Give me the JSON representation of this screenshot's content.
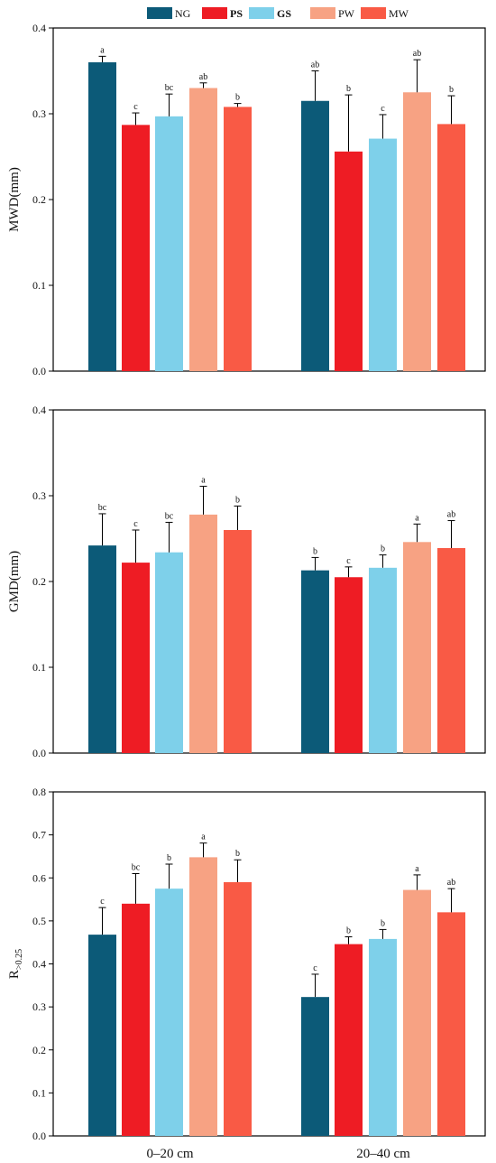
{
  "legend": {
    "items": [
      {
        "label": "NG",
        "color": "#0c5a78",
        "bold": false
      },
      {
        "label": "PS",
        "color": "#ee1c24",
        "bold": true
      },
      {
        "label": "GS",
        "color": "#7ed0ea",
        "bold": true
      },
      {
        "label": "PW",
        "color": "#f7a283",
        "bold": false
      },
      {
        "label": "MW",
        "color": "#f95a45",
        "bold": false
      }
    ]
  },
  "chart_data": [
    {
      "type": "bar",
      "title": "",
      "xlabel": "",
      "ylabel": "MWD(mm)",
      "ylim": [
        0,
        0.4
      ],
      "yticks": [
        "0.0",
        "0.1",
        "0.2",
        "0.3",
        "0.4"
      ],
      "categories": [
        "0–20 cm",
        "20–40 cm"
      ],
      "show_category_labels": false,
      "series": [
        {
          "name": "NG",
          "values": [
            0.36,
            0.315
          ],
          "errors": [
            0.007,
            0.035
          ],
          "letters": [
            "a",
            "ab"
          ]
        },
        {
          "name": "PS",
          "values": [
            0.287,
            0.256
          ],
          "errors": [
            0.014,
            0.066
          ],
          "letters": [
            "c",
            "b"
          ]
        },
        {
          "name": "GS",
          "values": [
            0.297,
            0.271
          ],
          "errors": [
            0.026,
            0.028
          ],
          "letters": [
            "bc",
            "c"
          ]
        },
        {
          "name": "PW",
          "values": [
            0.33,
            0.325
          ],
          "errors": [
            0.006,
            0.038
          ],
          "letters": [
            "ab",
            "ab"
          ]
        },
        {
          "name": "MW",
          "values": [
            0.308,
            0.288
          ],
          "errors": [
            0.004,
            0.033
          ],
          "letters": [
            "b",
            "b"
          ]
        }
      ]
    },
    {
      "type": "bar",
      "title": "",
      "xlabel": "",
      "ylabel": "GMD(mm)",
      "ylim": [
        0,
        0.4
      ],
      "yticks": [
        "0.0",
        "0.1",
        "0.2",
        "0.3",
        "0.4"
      ],
      "categories": [
        "0–20 cm",
        "20–40 cm"
      ],
      "show_category_labels": false,
      "series": [
        {
          "name": "NG",
          "values": [
            0.242,
            0.213
          ],
          "errors": [
            0.037,
            0.015
          ],
          "letters": [
            "bc",
            "b"
          ]
        },
        {
          "name": "PS",
          "values": [
            0.222,
            0.205
          ],
          "errors": [
            0.038,
            0.012
          ],
          "letters": [
            "c",
            "c"
          ]
        },
        {
          "name": "GS",
          "values": [
            0.234,
            0.216
          ],
          "errors": [
            0.035,
            0.015
          ],
          "letters": [
            "bc",
            "b"
          ]
        },
        {
          "name": "PW",
          "values": [
            0.278,
            0.246
          ],
          "errors": [
            0.033,
            0.021
          ],
          "letters": [
            "a",
            "a"
          ]
        },
        {
          "name": "MW",
          "values": [
            0.26,
            0.239
          ],
          "errors": [
            0.028,
            0.032
          ],
          "letters": [
            "b",
            "ab"
          ]
        }
      ]
    },
    {
      "type": "bar",
      "title": "",
      "xlabel": "",
      "ylabel": "R",
      "ylabel_sub": ">0.25",
      "ylim": [
        0,
        0.8
      ],
      "yticks": [
        "0.0",
        "0.1",
        "0.2",
        "0.3",
        "0.4",
        "0.5",
        "0.6",
        "0.7",
        "0.8"
      ],
      "categories": [
        "0–20 cm",
        "20–40 cm"
      ],
      "show_category_labels": true,
      "series": [
        {
          "name": "NG",
          "values": [
            0.468,
            0.323
          ],
          "errors": [
            0.063,
            0.053
          ],
          "letters": [
            "c",
            "c"
          ]
        },
        {
          "name": "PS",
          "values": [
            0.54,
            0.446
          ],
          "errors": [
            0.07,
            0.017
          ],
          "letters": [
            "bc",
            "b"
          ]
        },
        {
          "name": "GS",
          "values": [
            0.575,
            0.458
          ],
          "errors": [
            0.057,
            0.022
          ],
          "letters": [
            "b",
            "b"
          ]
        },
        {
          "name": "PW",
          "values": [
            0.648,
            0.572
          ],
          "errors": [
            0.033,
            0.035
          ],
          "letters": [
            "a",
            "a"
          ]
        },
        {
          "name": "MW",
          "values": [
            0.59,
            0.52
          ],
          "errors": [
            0.052,
            0.055
          ],
          "letters": [
            "b",
            "ab"
          ]
        }
      ]
    }
  ]
}
